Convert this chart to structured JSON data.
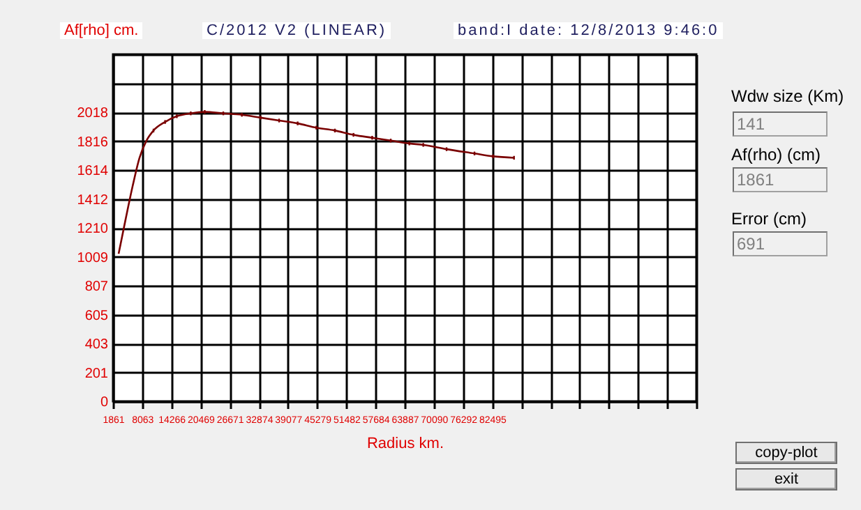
{
  "chart_data": [
    {
      "type": "line",
      "title": "C/2012 V2 (LINEAR)",
      "subtitle": "band:I date: 12/8/2013 9:46:0",
      "ylabel": "Af[rho] cm.",
      "xlabel": "Radius km.",
      "x": [
        3048,
        4532,
        6016,
        7500,
        8984,
        10468,
        12932,
        15425,
        18393,
        21361,
        25309,
        29256,
        33232,
        37180,
        41127,
        45105,
        49052,
        53000,
        56976,
        60923,
        64871,
        67839,
        72796,
        78732,
        82688,
        87141
      ],
      "series": [
        {
          "color": "#7a0000",
          "values": [
            1030,
            1270,
            1500,
            1700,
            1820,
            1890,
            1950,
            1990,
            2010,
            2020,
            2010,
            2000,
            1980,
            1960,
            1940,
            1910,
            1890,
            1860,
            1840,
            1820,
            1800,
            1790,
            1760,
            1730,
            1710,
            1700
          ],
          "errors": [
            null,
            null,
            null,
            null,
            null,
            13,
            13,
            13,
            13,
            13,
            13,
            13,
            13,
            13,
            13,
            13,
            13,
            13,
            13,
            13,
            13,
            13,
            13,
            13,
            13,
            13
          ]
        }
      ],
      "xlim": [
        1861,
        125913
      ],
      "xticks": [
        1861,
        8063,
        14266,
        20469,
        26671,
        32874,
        39077,
        45279,
        51482,
        57684,
        63887,
        70090,
        76292,
        82495,
        {
          "value": 88698,
          "label": null
        },
        {
          "value": 94900,
          "label": null
        },
        {
          "value": 101103,
          "label": null
        },
        {
          "value": 107306,
          "label": null
        },
        {
          "value": 113508,
          "label": null
        },
        {
          "value": 119711,
          "label": null
        },
        {
          "value": 125913,
          "label": null
        }
      ],
      "ylim": [
        0,
        2422
      ],
      "yticks": [
        0,
        201,
        403,
        605,
        807,
        1009,
        1210,
        1412,
        1614,
        1816,
        2018,
        {
          "value": 2220,
          "label": null
        },
        {
          "value": 2422,
          "label": null
        }
      ],
      "grid": true,
      "marker": "none",
      "line_style": "solid"
    },
    {
      "type": "other",
      "annotations": [
        "Wdw size (Km)",
        "141",
        "Af(rho) (cm)",
        "1861",
        "Error (cm)",
        "691",
        "copy-plot",
        "exit"
      ]
    }
  ]
}
